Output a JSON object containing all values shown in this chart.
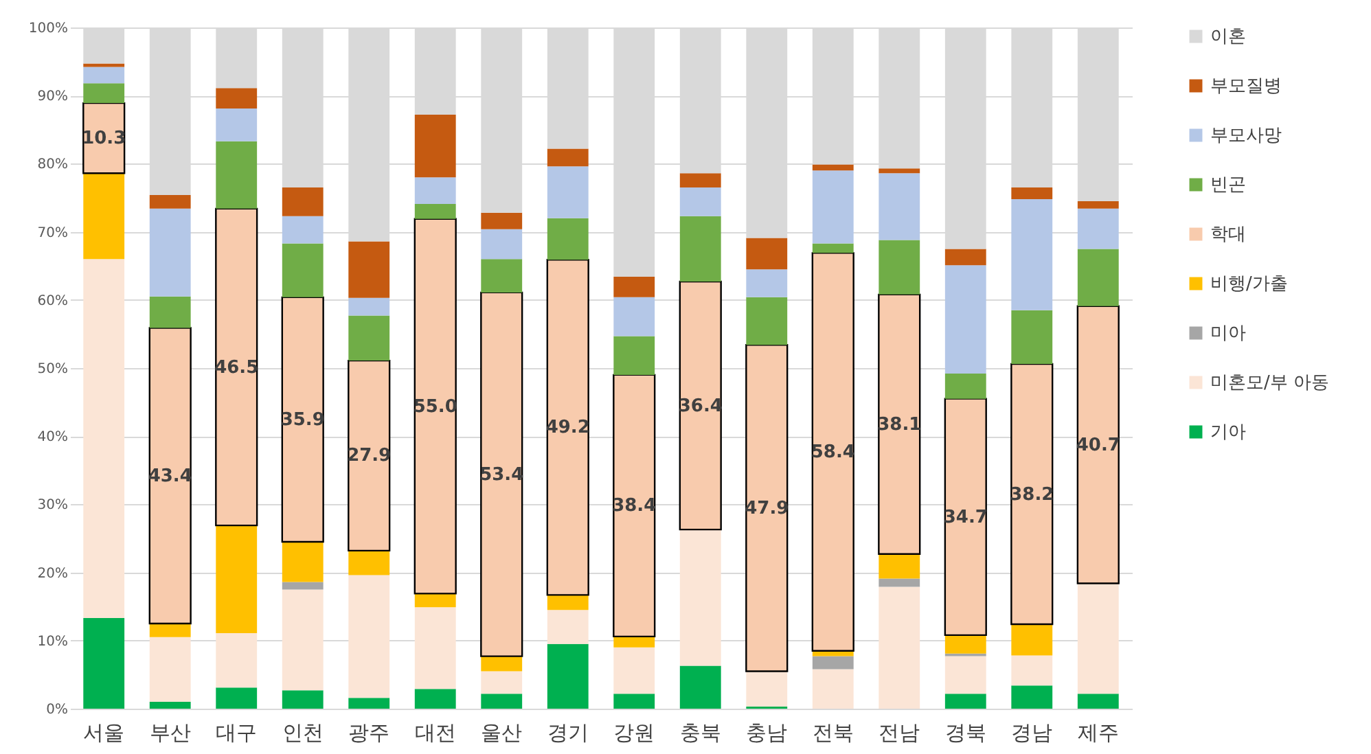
{
  "chart_data": {
    "type": "bar",
    "stacked": true,
    "legend": "right",
    "grid": "y",
    "categories": [
      "서울",
      "부산",
      "대구",
      "인천",
      "광주",
      "대전",
      "울산",
      "경기",
      "강원",
      "충북",
      "충남",
      "전북",
      "전남",
      "경북",
      "경남",
      "제주"
    ],
    "ylim": [
      0,
      100
    ],
    "yticks": [
      {
        "value": 0,
        "label": "0%"
      },
      {
        "value": 10,
        "label": "10%"
      },
      {
        "value": 20,
        "label": "20%"
      },
      {
        "value": 30,
        "label": "30%"
      },
      {
        "value": 40,
        "label": "40%"
      },
      {
        "value": 50,
        "label": "50%"
      },
      {
        "value": 60,
        "label": "60%"
      },
      {
        "value": 70,
        "label": "70%"
      },
      {
        "value": 80,
        "label": "80%"
      },
      {
        "value": 90,
        "label": "90%"
      },
      {
        "value": 100,
        "label": "100%"
      }
    ],
    "series": [
      {
        "name": "기아",
        "color": "#00b050",
        "values": [
          13.3,
          1.0,
          3.1,
          2.7,
          1.6,
          2.9,
          2.2,
          9.5,
          2.2,
          6.3,
          0.3,
          0,
          0,
          2.2,
          3.4,
          2.2
        ]
      },
      {
        "name": "미혼모/부 아동",
        "color": "#fbe5d6",
        "values": [
          52.7,
          9.5,
          8.0,
          14.8,
          18.0,
          12.0,
          3.3,
          5.0,
          6.8,
          20.0,
          5.2,
          5.8,
          17.9,
          5.5,
          4.4,
          16.2
        ]
      },
      {
        "name": "미아",
        "color": "#a6a6a6",
        "values": [
          0,
          0,
          0,
          1.1,
          0,
          0,
          0,
          0,
          0,
          0,
          0,
          1.9,
          1.2,
          0.4,
          0,
          0
        ]
      },
      {
        "name": "비행/가출",
        "color": "#ffc000",
        "values": [
          12.6,
          2.0,
          15.8,
          5.9,
          3.6,
          2.0,
          2.2,
          2.2,
          1.6,
          0,
          0,
          0.8,
          3.6,
          2.7,
          4.6,
          0
        ]
      },
      {
        "name": "학대",
        "color": "#f8cbad",
        "values": [
          10.3,
          43.4,
          46.5,
          35.9,
          27.9,
          55.0,
          53.4,
          49.2,
          38.4,
          36.4,
          47.9,
          58.4,
          38.1,
          34.7,
          38.2,
          40.7
        ],
        "value_labels": [
          "10.3",
          "43.4",
          "46.5",
          "35.9",
          "27.9",
          "55.0",
          "53.4",
          "49.2",
          "38.4",
          "36.4",
          "47.9",
          "58.4",
          "38.1",
          "34.7",
          "38.2",
          "40.7"
        ]
      },
      {
        "name": "빈곤",
        "color": "#70ad47",
        "values": [
          2.9,
          4.6,
          9.9,
          7.9,
          6.6,
          2.2,
          4.9,
          6.1,
          5.7,
          9.6,
          7.0,
          1.4,
          8.0,
          3.7,
          7.9,
          8.4
        ]
      },
      {
        "name": "부모사망",
        "color": "#b4c7e7",
        "values": [
          2.4,
          12.9,
          4.8,
          4.0,
          2.6,
          3.9,
          4.4,
          7.6,
          5.7,
          4.2,
          4.1,
          10.7,
          9.8,
          15.9,
          16.3,
          5.9
        ]
      },
      {
        "name": "부모질병",
        "color": "#c55a11",
        "values": [
          0.5,
          2.0,
          3.0,
          4.2,
          8.3,
          9.2,
          2.4,
          2.6,
          3.0,
          2.1,
          4.6,
          0.9,
          0.7,
          2.4,
          1.7,
          1.1
        ]
      },
      {
        "name": "이혼",
        "color": "#d9d9d9",
        "values": [
          5.3,
          24.6,
          8.9,
          23.5,
          31.4,
          12.8,
          27.2,
          17.8,
          36.6,
          21.4,
          30.9,
          20.1,
          20.7,
          32.5,
          23.5,
          25.5
        ]
      }
    ]
  }
}
